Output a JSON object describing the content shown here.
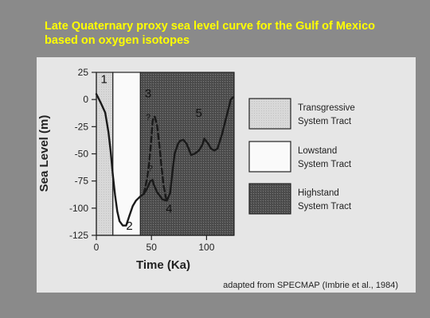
{
  "slide": {
    "title_line1": "Late Quaternary proxy sea level curve for the Gulf of Mexico",
    "title_line2": "based on oxygen isotopes"
  },
  "chart_data": {
    "type": "line",
    "xlabel": "Time (Ka)",
    "ylabel": "Sea Level (m)",
    "xlim": [
      0,
      125
    ],
    "ylim": [
      -125,
      25
    ],
    "x_ticks": [
      "0",
      "50",
      "100"
    ],
    "y_ticks": [
      "25",
      "0",
      "-25",
      "-50",
      "-75",
      "-100",
      "-125"
    ],
    "series": [
      {
        "name": "",
        "style": "solid",
        "points": [
          [
            0,
            5
          ],
          [
            4,
            -3
          ],
          [
            8,
            -12
          ],
          [
            11,
            -30
          ],
          [
            13,
            -48
          ],
          [
            15,
            -70
          ],
          [
            17,
            -88
          ],
          [
            19,
            -103
          ],
          [
            21,
            -112
          ],
          [
            24,
            -116
          ],
          [
            27,
            -116
          ],
          [
            30,
            -107
          ],
          [
            33,
            -98
          ],
          [
            36,
            -93
          ],
          [
            40,
            -89
          ],
          [
            43,
            -87
          ],
          [
            46,
            -82
          ],
          [
            49,
            -75
          ],
          [
            51,
            -74
          ],
          [
            52,
            -78
          ],
          [
            55,
            -85
          ],
          [
            60,
            -92
          ],
          [
            64,
            -93
          ],
          [
            67,
            -86
          ],
          [
            69,
            -67
          ],
          [
            71,
            -50
          ],
          [
            74,
            -41
          ],
          [
            76,
            -38
          ],
          [
            79,
            -37
          ],
          [
            82,
            -41
          ],
          [
            84,
            -46
          ],
          [
            86,
            -51
          ],
          [
            89,
            -50
          ],
          [
            93,
            -47
          ],
          [
            96,
            -42
          ],
          [
            98,
            -36
          ],
          [
            101,
            -40
          ],
          [
            104,
            -45
          ],
          [
            107,
            -47
          ],
          [
            110,
            -45
          ],
          [
            114,
            -32
          ],
          [
            117,
            -20
          ],
          [
            120,
            -8
          ],
          [
            122,
            0
          ],
          [
            124,
            2
          ]
        ]
      },
      {
        "name": "",
        "style": "dashed",
        "points": [
          [
            43,
            -87
          ],
          [
            46,
            -73
          ],
          [
            48,
            -58
          ],
          [
            50,
            -35
          ],
          [
            51,
            -20
          ],
          [
            52,
            -16
          ],
          [
            53,
            -16
          ],
          [
            55,
            -23
          ],
          [
            57,
            -40
          ],
          [
            59,
            -61
          ],
          [
            61,
            -79
          ],
          [
            63,
            -90
          ],
          [
            64,
            -93
          ]
        ]
      }
    ],
    "regions": [
      {
        "label": "1",
        "x_range": [
          0,
          15
        ],
        "type": "transgressive"
      },
      {
        "label": "2",
        "x_range": [
          15,
          40
        ],
        "type": "lowstand"
      },
      {
        "label": "3-5",
        "x_range": [
          40,
          125
        ],
        "type": "highstand"
      }
    ],
    "annotations": [
      {
        "text": "1",
        "x": 7,
        "y": 15
      },
      {
        "text": "2",
        "x": 30,
        "y": -120
      },
      {
        "text": "3",
        "x": 47,
        "y": 2
      },
      {
        "text": "?",
        "x": 47,
        "y": -19
      },
      {
        "text": "?",
        "x": 49,
        "y": -66
      },
      {
        "text": "4",
        "x": 66,
        "y": -104
      },
      {
        "text": "5",
        "x": 93,
        "y": -16
      }
    ],
    "legend": [
      {
        "label_line1": "Transgressive",
        "label_line2": "System Tract",
        "fill": "#dcdcdc"
      },
      {
        "label_line1": "Lowstand",
        "label_line2": "System Tract",
        "fill": "#f7f7f7"
      },
      {
        "label_line1": "Highstand",
        "label_line2": "System Tract",
        "fill": "#5a5a5a"
      }
    ],
    "legend_position": "right",
    "grid": false,
    "credit": "adapted from SPECMAP (Imbrie et al., 1984)"
  }
}
